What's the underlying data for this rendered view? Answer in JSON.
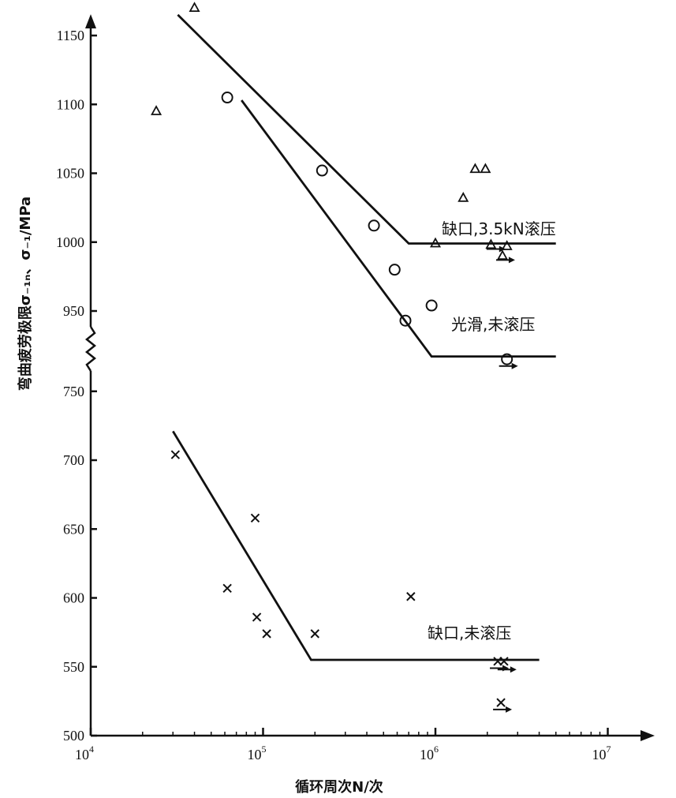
{
  "chart_data": {
    "type": "scatter",
    "xlabel": "循环周次N/次",
    "ylabel": "弯曲疲劳极限σ₋₁ₙ、σ₋₁/MPa",
    "x_scale": "log",
    "xlim": [
      10000,
      10000000
    ],
    "x_ticks": [
      {
        "value": 10000,
        "base": "10",
        "exp": "4"
      },
      {
        "value": 100000,
        "base": "10",
        "exp": "5"
      },
      {
        "value": 1000000,
        "base": "10",
        "exp": "6"
      },
      {
        "value": 10000000,
        "base": "10",
        "exp": "7"
      }
    ],
    "y_axis_break": {
      "from": 920,
      "to": 770
    },
    "y_ticks_lower": [
      "500",
      "550",
      "600",
      "650",
      "700",
      "750"
    ],
    "y_ticks_upper": [
      "950",
      "1000",
      "1050",
      "1100",
      "1150"
    ],
    "series": [
      {
        "name": "缺口,3.5kN滚压",
        "marker": "triangle",
        "points": [
          [
            24000,
            1095
          ],
          [
            40000,
            1170
          ],
          [
            1000000,
            999
          ],
          [
            1450000,
            1032
          ],
          [
            1700000,
            1053
          ],
          [
            1950000,
            1053
          ],
          [
            2100000,
            998
          ],
          [
            2450000,
            990
          ],
          [
            2600000,
            997
          ]
        ],
        "fit_line": [
          [
            32000,
            1165
          ],
          [
            700000,
            999
          ],
          [
            5000000,
            999
          ]
        ],
        "runouts": [
          [
            2200000,
            995
          ],
          [
            2500000,
            987
          ]
        ]
      },
      {
        "name": "光滑,未滚压",
        "marker": "circle",
        "points": [
          [
            62000,
            1105
          ],
          [
            220000,
            1052
          ],
          [
            440000,
            1012
          ],
          [
            580000,
            980
          ],
          [
            670000,
            943
          ],
          [
            950000,
            954
          ],
          [
            2600000,
            915
          ]
        ],
        "fit_line": [
          [
            75000,
            1103
          ],
          [
            950000,
            917
          ],
          [
            5000000,
            917
          ]
        ],
        "runouts": [
          [
            2600000,
            910
          ]
        ]
      },
      {
        "name": "缺口,未滚压",
        "marker": "x",
        "points": [
          [
            31000,
            704
          ],
          [
            62000,
            607
          ],
          [
            90000,
            658
          ],
          [
            92000,
            586
          ],
          [
            105000,
            574
          ],
          [
            200000,
            574
          ],
          [
            720000,
            601
          ],
          [
            2300000,
            554
          ],
          [
            2500000,
            554
          ],
          [
            2400000,
            524
          ]
        ],
        "fit_line": [
          [
            30000,
            721
          ],
          [
            190000,
            555
          ],
          [
            4000000,
            555
          ]
        ],
        "runouts": [
          [
            2300000,
            549
          ],
          [
            2550000,
            548
          ],
          [
            2400000,
            519
          ]
        ]
      }
    ],
    "grid": false,
    "legend": "none"
  }
}
